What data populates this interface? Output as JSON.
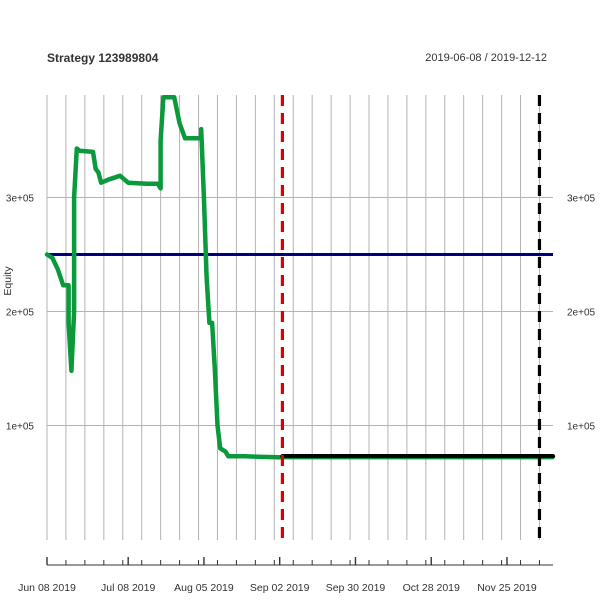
{
  "chart_data": {
    "type": "line",
    "title": "Strategy 123989804",
    "date_range": "2019-06-08 / 2019-12-12",
    "ylabel": "Equity",
    "xlabel": "",
    "x_range": [
      "2019-06-08",
      "2019-12-12"
    ],
    "ylim": [
      0,
      390000
    ],
    "y_ticks": [
      100000,
      200000,
      300000
    ],
    "y_tick_labels": [
      "1e+05",
      "2e+05",
      "3e+05"
    ],
    "x_ticks": [
      "2019-06-08",
      "2019-07-08",
      "2019-08-05",
      "2019-09-02",
      "2019-09-30",
      "2019-10-28",
      "2019-11-25"
    ],
    "x_tick_labels": [
      "Jun 08 2019",
      "Jul 08 2019",
      "Aug 05 2019",
      "Sep 02 2019",
      "Sep 30 2019",
      "Oct 28 2019",
      "Nov 25 2019"
    ],
    "grid": "vertical weekly lines, horizontal lines at y ticks",
    "series": [
      {
        "color": "#0a9a3c",
        "style": "thick-solid",
        "points": [
          [
            "2019-06-08",
            250000
          ],
          [
            "2019-06-10",
            247000
          ],
          [
            "2019-06-12",
            237000
          ],
          [
            "2019-06-14",
            223000
          ],
          [
            "2019-06-16",
            223000
          ],
          [
            "2019-06-16",
            190000
          ],
          [
            "2019-06-17",
            148000
          ],
          [
            "2019-06-18",
            200000
          ],
          [
            "2019-06-18",
            300000
          ],
          [
            "2019-06-19",
            343000
          ],
          [
            "2019-06-20",
            341000
          ],
          [
            "2019-06-25",
            340000
          ],
          [
            "2019-06-26",
            325000
          ],
          [
            "2019-06-27",
            322000
          ],
          [
            "2019-06-28",
            313000
          ],
          [
            "2019-07-01",
            316000
          ],
          [
            "2019-07-05",
            319000
          ],
          [
            "2019-07-08",
            313000
          ],
          [
            "2019-07-15",
            312000
          ],
          [
            "2019-07-19",
            312000
          ],
          [
            "2019-07-20",
            308000
          ],
          [
            "2019-07-20",
            350000
          ],
          [
            "2019-07-21",
            388000
          ],
          [
            "2019-07-25",
            388000
          ],
          [
            "2019-07-27",
            365000
          ],
          [
            "2019-07-29",
            352000
          ],
          [
            "2019-08-04",
            352000
          ],
          [
            "2019-08-04",
            360000
          ],
          [
            "2019-08-05",
            300000
          ],
          [
            "2019-08-06",
            230000
          ],
          [
            "2019-08-07",
            190000
          ],
          [
            "2019-08-08",
            190000
          ],
          [
            "2019-08-09",
            150000
          ],
          [
            "2019-08-10",
            100000
          ],
          [
            "2019-08-11",
            80000
          ],
          [
            "2019-08-13",
            77000
          ],
          [
            "2019-08-14",
            73000
          ],
          [
            "2019-08-20",
            73000
          ],
          [
            "2019-09-03",
            72000
          ]
        ]
      },
      {
        "color": "#000000",
        "style": "thick-solid",
        "points": [
          [
            "2019-09-03",
            73000
          ],
          [
            "2019-12-12",
            73000
          ]
        ]
      },
      {
        "color": "#0a8a3a",
        "style": "thin-solid",
        "points": [
          [
            "2019-09-03",
            71000
          ],
          [
            "2019-12-12",
            71000
          ]
        ]
      }
    ],
    "reference_lines": [
      {
        "orientation": "horizontal",
        "value": 250000,
        "color": "#00007f",
        "style": "solid"
      },
      {
        "orientation": "vertical",
        "value": "2019-09-03",
        "color": "#dd0000",
        "style": "dashed"
      },
      {
        "orientation": "vertical",
        "value": "2019-12-07",
        "color": "#000000",
        "style": "dashed"
      }
    ]
  }
}
